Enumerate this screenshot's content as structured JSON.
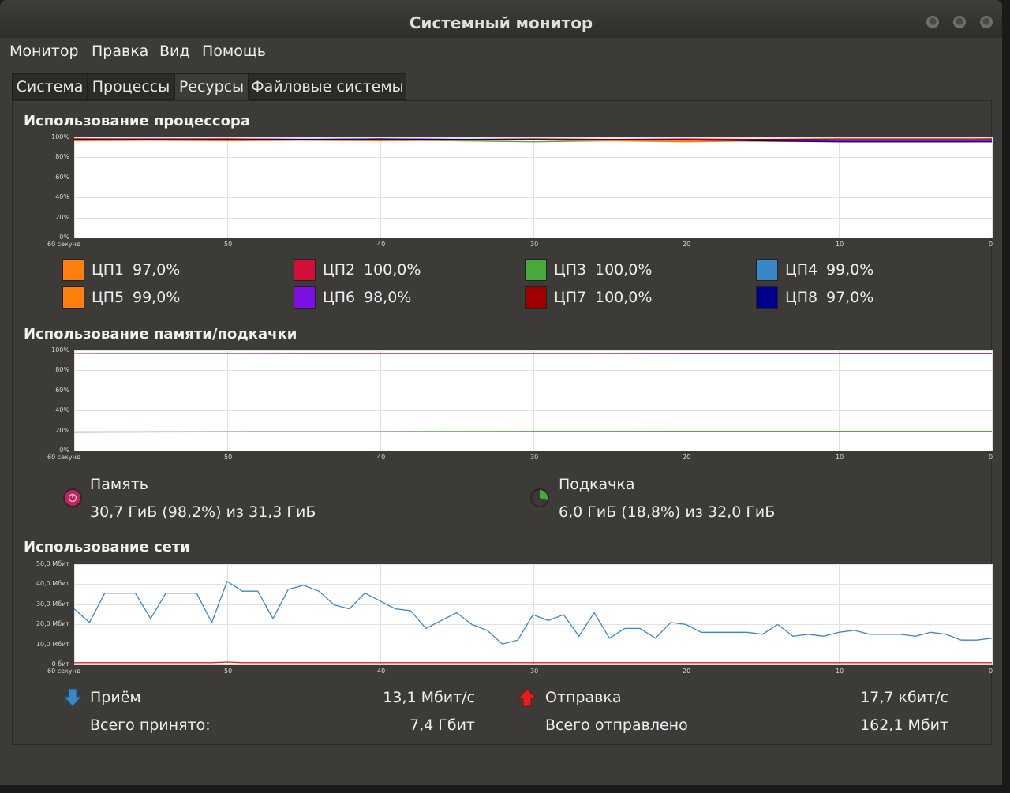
{
  "window": {
    "title": "Системный монитор"
  },
  "menu": [
    "Монитор",
    "Правка",
    "Вид",
    "Помощь"
  ],
  "tabs": [
    "Система",
    "Процессы",
    "Ресурсы",
    "Файловые системы"
  ],
  "active_tab": "Ресурсы",
  "cpu": {
    "title": "Использование процессора",
    "cores": [
      {
        "name": "ЦП1",
        "value": "97,0%",
        "color": "#ff7f0e"
      },
      {
        "name": "ЦП2",
        "value": "100,0%",
        "color": "#d0103a"
      },
      {
        "name": "ЦП3",
        "value": "100,0%",
        "color": "#4aa83c"
      },
      {
        "name": "ЦП4",
        "value": "99,0%",
        "color": "#3a87c8"
      },
      {
        "name": "ЦП5",
        "value": "99,0%",
        "color": "#ff7f0e"
      },
      {
        "name": "ЦП6",
        "value": "98,0%",
        "color": "#7b10e0"
      },
      {
        "name": "ЦП7",
        "value": "100,0%",
        "color": "#a00000"
      },
      {
        "name": "ЦП8",
        "value": "97,0%",
        "color": "#00008b"
      }
    ]
  },
  "memory": {
    "title": "Использование памяти/подкачки",
    "mem_label": "Память",
    "mem_value": "30,7 ГиБ (98,2%) из 31,3 ГиБ",
    "swap_label": "Подкачка",
    "swap_value": "6,0 ГиБ (18,8%) из 32,0 ГиБ",
    "mem_color": "#c0245f",
    "swap_color": "#4aa83c"
  },
  "network": {
    "title": "Использование сети",
    "recv_label": "Приём",
    "recv_rate": "13,1 Мбит/с",
    "recv_total_label": "Всего принято:",
    "recv_total": "7,4 Гбит",
    "send_label": "Отправка",
    "send_rate": "17,7 кбит/с",
    "send_total_label": "Всего отправлено",
    "send_total": "162,1 Мбит",
    "recv_color": "#3a87c8",
    "send_color": "#e02020"
  },
  "axes": {
    "percent_ticks": [
      "100%",
      "80%",
      "60%",
      "40%",
      "20%",
      "0%"
    ],
    "net_ticks": [
      "50,0 Мбит",
      "40,0 Мбит",
      "30,0 Мбит",
      "20,0 Мбит",
      "10,0 Мбит",
      "0 бит"
    ],
    "x_ticks": [
      "60 секунд",
      "50",
      "40",
      "30",
      "20",
      "10",
      "0"
    ]
  },
  "chart_data": [
    {
      "type": "line",
      "title": "Использование процессора",
      "x": [
        60,
        50,
        40,
        30,
        20,
        10,
        0
      ],
      "ylim": [
        0,
        100
      ],
      "series": [
        {
          "name": "ЦП1",
          "values": [
            99,
            98,
            99,
            99,
            98,
            97,
            97
          ]
        },
        {
          "name": "ЦП2",
          "values": [
            100,
            99,
            100,
            99,
            100,
            99,
            100
          ]
        },
        {
          "name": "ЦП3",
          "values": [
            99,
            99,
            99,
            97,
            99,
            99,
            100
          ]
        },
        {
          "name": "ЦП4",
          "values": [
            100,
            99,
            99,
            99,
            99,
            98,
            99
          ]
        },
        {
          "name": "ЦП5",
          "values": [
            98,
            99,
            98,
            99,
            97,
            99,
            99
          ]
        },
        {
          "name": "ЦП6",
          "values": [
            99,
            100,
            99,
            99,
            99,
            98,
            98
          ]
        },
        {
          "name": "ЦП7",
          "values": [
            100,
            100,
            99,
            100,
            99,
            100,
            100
          ]
        },
        {
          "name": "ЦП8",
          "values": [
            99,
            99,
            100,
            99,
            99,
            97,
            97
          ]
        }
      ]
    },
    {
      "type": "line",
      "title": "Использование памяти/подкачки",
      "x": [
        60,
        50,
        40,
        30,
        20,
        10,
        0
      ],
      "ylim": [
        0,
        100
      ],
      "series": [
        {
          "name": "Память",
          "values": [
            98.5,
            98.4,
            98.3,
            98.3,
            98.2,
            98.2,
            98.2
          ]
        },
        {
          "name": "Подкачка",
          "values": [
            18.0,
            18.3,
            18.5,
            18.7,
            18.8,
            18.8,
            18.8
          ]
        }
      ]
    },
    {
      "type": "line",
      "title": "Использование сети",
      "x": [
        60,
        59,
        58,
        57,
        56,
        55,
        54,
        53,
        52,
        51,
        50,
        49,
        48,
        47,
        46,
        45,
        44,
        43,
        42,
        41,
        40,
        39,
        38,
        37,
        36,
        35,
        34,
        33,
        32,
        31,
        30,
        29,
        28,
        27,
        26,
        25,
        24,
        23,
        22,
        21,
        20,
        19,
        18,
        17,
        16,
        15,
        14,
        13,
        12,
        11,
        10,
        9,
        8,
        7,
        6,
        5,
        4,
        3,
        2,
        1,
        0
      ],
      "ylim": [
        0,
        50
      ],
      "series": [
        {
          "name": "Приём",
          "values": [
            28,
            21,
            36,
            36,
            36,
            23,
            36,
            36,
            36,
            21,
            42,
            37,
            37,
            23,
            38,
            40,
            37,
            30,
            28,
            36,
            32,
            28,
            27,
            18,
            22,
            26,
            20,
            17,
            10,
            12,
            25,
            22,
            25,
            14,
            26,
            13,
            18,
            18,
            13,
            21,
            20,
            16,
            16,
            16,
            16,
            15,
            20,
            14,
            15,
            14,
            16,
            17,
            15,
            15,
            15,
            14,
            16,
            15,
            12,
            12,
            13
          ]
        },
        {
          "name": "Отправка",
          "values": [
            0.5,
            0.5,
            0.5,
            0.5,
            0.5,
            0.5,
            0.5,
            0.5,
            0.5,
            0.5,
            0.8,
            0.5,
            0.5,
            0.5,
            0.5,
            0.5,
            0.5,
            0.5,
            0.5,
            0.5,
            0.5,
            0.5,
            0.5,
            0.5,
            0.5,
            0.5,
            0.5,
            0.5,
            0.5,
            0.5,
            0.5,
            0.5,
            0.5,
            0.5,
            0.5,
            0.5,
            0.5,
            0.5,
            0.5,
            0.5,
            0.5,
            0.5,
            0.5,
            0.5,
            0.5,
            0.5,
            0.5,
            0.5,
            0.5,
            0.5,
            0.5,
            0.5,
            0.5,
            0.5,
            0.5,
            0.5,
            0.5,
            0.5,
            0.5,
            0.5,
            0.5
          ]
        }
      ]
    }
  ]
}
